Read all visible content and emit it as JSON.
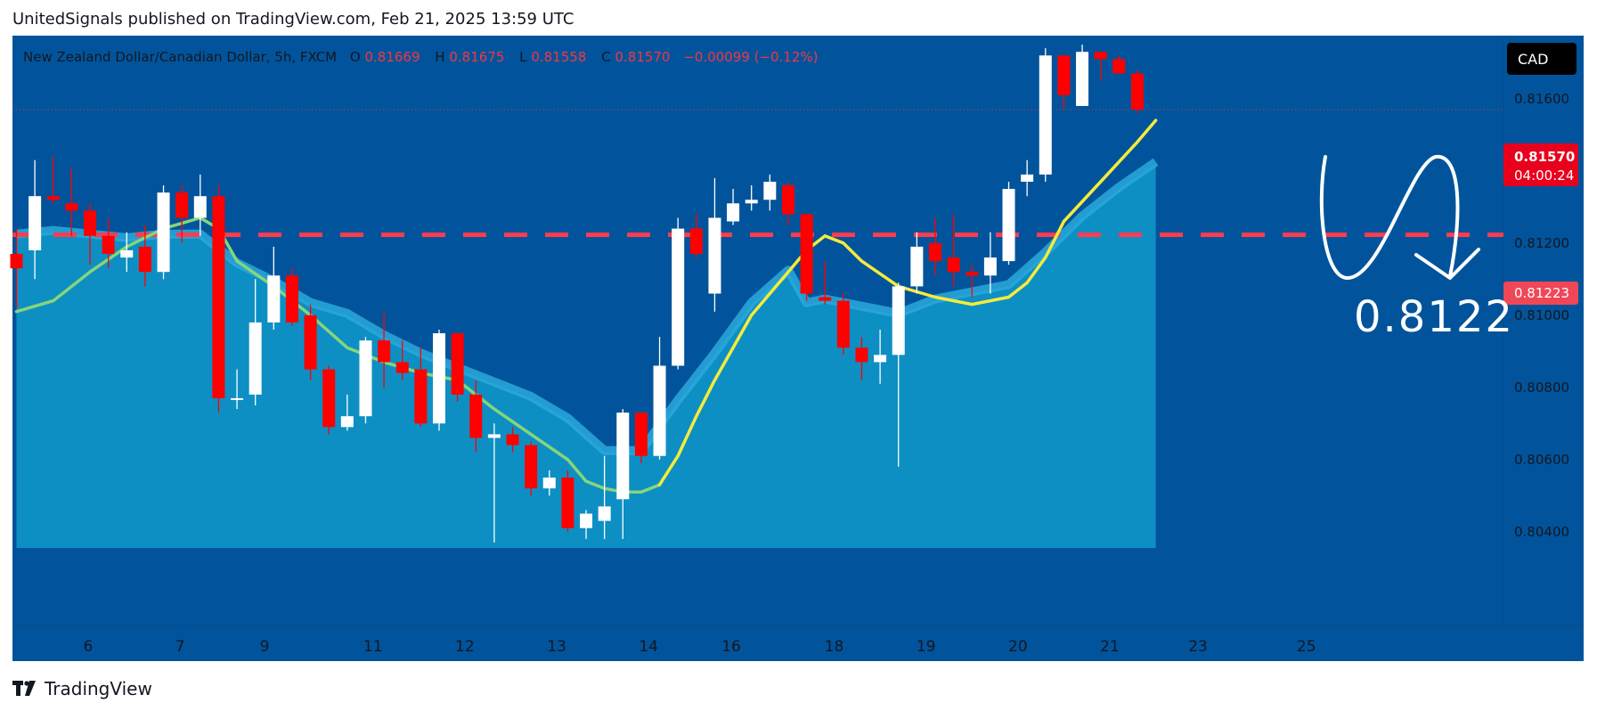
{
  "header": {
    "publisher": "UnitedSignals published on TradingView.com, Feb 21, 2025 13:59 UTC"
  },
  "footer": {
    "brand": "TradingView"
  },
  "colors": {
    "panel": "#01549b",
    "area_fill": "#0d8fc4",
    "area_band": "#2aa9dc",
    "yellow_ma": "#f5eb3b",
    "green_ma": "#86d57a",
    "bear": "#ff0000",
    "bull": "#ffffff",
    "level": "#ff3b4e",
    "legend_text": "#131722",
    "legend_value": "#f23645"
  },
  "legend": {
    "symbol": "New Zealand Dollar/Canadian Dollar, 5h, FXCM",
    "o_label": "O",
    "o_value": "0.81669",
    "h_label": "H",
    "h_value": "0.81675",
    "l_label": "L",
    "l_value": "0.81558",
    "c_label": "C",
    "c_value": "0.81570",
    "change": "−0.00099 (−0.12%)"
  },
  "currency": "CAD",
  "price_badge": {
    "price": "0.81570",
    "countdown": "04:00:24"
  },
  "level_badge": "0.81223",
  "annotation": "0.8122",
  "chart_data": {
    "type": "candlestick",
    "instrument": "NZDCAD",
    "timeframe": "5h",
    "ylim": [
      0.8035,
      0.8177
    ],
    "y_ticks": [
      "0.81600",
      "0.81400",
      "0.81200",
      "0.81000",
      "0.80800",
      "0.80600",
      "0.80400"
    ],
    "y_tick_values": [
      0.816,
      0.814,
      0.812,
      0.81,
      0.808,
      0.806,
      0.804
    ],
    "x_ticks": [
      {
        "label": "6",
        "index": 3.9
      },
      {
        "label": "7",
        "index": 8.9
      },
      {
        "label": "9",
        "index": 13.5
      },
      {
        "label": "11",
        "index": 19.4
      },
      {
        "label": "12",
        "index": 24.4
      },
      {
        "label": "13",
        "index": 29.4
      },
      {
        "label": "14",
        "index": 34.4
      },
      {
        "label": "16",
        "index": 38.9
      },
      {
        "label": "18",
        "index": 44.5
      },
      {
        "label": "19",
        "index": 49.5
      },
      {
        "label": "20",
        "index": 54.5
      },
      {
        "label": "21",
        "index": 59.5
      },
      {
        "label": "23",
        "index": 64.3
      },
      {
        "label": "25",
        "index": 70.2
      }
    ],
    "horizontal_level": 0.81223,
    "last_price": 0.8157,
    "candles": [
      [
        0.8117,
        0.8124,
        0.8102,
        0.8113
      ],
      [
        0.8118,
        0.8143,
        0.811,
        0.8133
      ],
      [
        0.8133,
        0.8144,
        0.8131,
        0.8132
      ],
      [
        0.8131,
        0.8141,
        0.8122,
        0.8129
      ],
      [
        0.8129,
        0.8131,
        0.8114,
        0.8122
      ],
      [
        0.8122,
        0.8127,
        0.8113,
        0.8117
      ],
      [
        0.8116,
        0.8123,
        0.8112,
        0.8118
      ],
      [
        0.8119,
        0.8125,
        0.8108,
        0.8112
      ],
      [
        0.8112,
        0.8136,
        0.811,
        0.8134
      ],
      [
        0.8134,
        0.8136,
        0.812,
        0.8127
      ],
      [
        0.8127,
        0.8139,
        0.8122,
        0.8133
      ],
      [
        0.8133,
        0.8136,
        0.8073,
        0.8077
      ],
      [
        0.8077,
        0.8085,
        0.8074,
        0.8077
      ],
      [
        0.8078,
        0.811,
        0.8075,
        0.8098
      ],
      [
        0.8098,
        0.8119,
        0.8096,
        0.8111
      ],
      [
        0.8111,
        0.8113,
        0.8097,
        0.8098
      ],
      [
        0.81,
        0.8103,
        0.8082,
        0.8085
      ],
      [
        0.8085,
        0.8086,
        0.8067,
        0.8069
      ],
      [
        0.8069,
        0.8078,
        0.8068,
        0.8072
      ],
      [
        0.8072,
        0.8094,
        0.807,
        0.8093
      ],
      [
        0.8093,
        0.8101,
        0.808,
        0.8087
      ],
      [
        0.8087,
        0.8093,
        0.8082,
        0.8084
      ],
      [
        0.8085,
        0.8091,
        0.8069,
        0.807
      ],
      [
        0.807,
        0.8096,
        0.8068,
        0.8095
      ],
      [
        0.8095,
        0.8095,
        0.8076,
        0.8078
      ],
      [
        0.8078,
        0.8082,
        0.8062,
        0.8066
      ],
      [
        0.8066,
        0.807,
        0.8037,
        0.8067
      ],
      [
        0.8067,
        0.8069,
        0.8062,
        0.8064
      ],
      [
        0.8064,
        0.8065,
        0.805,
        0.8052
      ],
      [
        0.8052,
        0.8057,
        0.805,
        0.8055
      ],
      [
        0.8055,
        0.8057,
        0.804,
        0.8041
      ],
      [
        0.8041,
        0.8046,
        0.8038,
        0.8045
      ],
      [
        0.8043,
        0.8061,
        0.8038,
        0.8047
      ],
      [
        0.8049,
        0.8074,
        0.8038,
        0.8073
      ],
      [
        0.8073,
        0.8073,
        0.8059,
        0.8061
      ],
      [
        0.8061,
        0.8094,
        0.806,
        0.8086
      ],
      [
        0.8086,
        0.8127,
        0.8085,
        0.8124
      ],
      [
        0.8124,
        0.8128,
        0.8116,
        0.8117
      ],
      [
        0.8106,
        0.8138,
        0.8101,
        0.8127
      ],
      [
        0.8126,
        0.8135,
        0.8125,
        0.8131
      ],
      [
        0.8131,
        0.8136,
        0.8129,
        0.8132
      ],
      [
        0.8132,
        0.8139,
        0.8129,
        0.8137
      ],
      [
        0.8136,
        0.8137,
        0.8125,
        0.8128
      ],
      [
        0.8128,
        0.8128,
        0.8104,
        0.8106
      ],
      [
        0.8105,
        0.8115,
        0.8103,
        0.8104
      ],
      [
        0.8104,
        0.8106,
        0.8089,
        0.8091
      ],
      [
        0.8091,
        0.8094,
        0.8082,
        0.8087
      ],
      [
        0.8087,
        0.8096,
        0.8081,
        0.8089
      ],
      [
        0.8089,
        0.8109,
        0.8058,
        0.8108
      ],
      [
        0.8108,
        0.8123,
        0.8106,
        0.8119
      ],
      [
        0.812,
        0.8127,
        0.8111,
        0.8115
      ],
      [
        0.8116,
        0.8128,
        0.8108,
        0.8112
      ],
      [
        0.8112,
        0.8114,
        0.8105,
        0.8111
      ],
      [
        0.8111,
        0.8123,
        0.8106,
        0.8116
      ],
      [
        0.8115,
        0.8137,
        0.8114,
        0.8135
      ],
      [
        0.8137,
        0.8143,
        0.8133,
        0.8139
      ],
      [
        0.8139,
        0.8174,
        0.8137,
        0.8172
      ],
      [
        0.8172,
        0.8172,
        0.8157,
        0.8161
      ],
      [
        0.8158,
        0.8175,
        0.8158,
        0.8173
      ],
      [
        0.8173,
        0.8173,
        0.8165,
        0.8171
      ],
      [
        0.8171,
        0.8172,
        0.8167,
        0.8167
      ],
      [
        0.8167,
        0.8168,
        0.8156,
        0.8157
      ]
    ],
    "ma_fast": [
      [
        0,
        0.8101
      ],
      [
        2,
        0.8104
      ],
      [
        4,
        0.8112
      ],
      [
        6,
        0.8119
      ],
      [
        8,
        0.8124
      ],
      [
        10,
        0.8127
      ],
      [
        11,
        0.8124
      ],
      [
        12,
        0.8115
      ],
      [
        14,
        0.8108
      ],
      [
        16,
        0.81
      ],
      [
        18,
        0.8091
      ],
      [
        20,
        0.8087
      ],
      [
        22,
        0.8084
      ],
      [
        24,
        0.8082
      ],
      [
        26,
        0.8074
      ],
      [
        28,
        0.8067
      ],
      [
        30,
        0.806
      ],
      [
        31,
        0.8054
      ],
      [
        32,
        0.8052
      ],
      [
        33,
        0.8051
      ],
      [
        34,
        0.8051
      ],
      [
        35,
        0.8053
      ],
      [
        36,
        0.8061
      ],
      [
        37,
        0.8072
      ],
      [
        38,
        0.8082
      ],
      [
        40,
        0.81
      ],
      [
        42,
        0.8112
      ],
      [
        43,
        0.8118
      ],
      [
        44,
        0.8122
      ],
      [
        45,
        0.812
      ],
      [
        46,
        0.8115
      ],
      [
        48,
        0.8108
      ],
      [
        50,
        0.8105
      ],
      [
        52,
        0.8103
      ],
      [
        54,
        0.8105
      ],
      [
        55,
        0.8109
      ],
      [
        56,
        0.8116
      ],
      [
        57,
        0.8126
      ],
      [
        59,
        0.8137
      ],
      [
        61,
        0.8148
      ],
      [
        62,
        0.8154
      ]
    ],
    "ma_slow": [
      [
        0,
        0.8122
      ],
      [
        2,
        0.8123
      ],
      [
        4,
        0.8122
      ],
      [
        6,
        0.8121
      ],
      [
        8,
        0.8122
      ],
      [
        10,
        0.8122
      ],
      [
        12,
        0.8114
      ],
      [
        14,
        0.8109
      ],
      [
        16,
        0.8103
      ],
      [
        18,
        0.81
      ],
      [
        20,
        0.8094
      ],
      [
        22,
        0.8089
      ],
      [
        24,
        0.8085
      ],
      [
        26,
        0.8081
      ],
      [
        28,
        0.8077
      ],
      [
        30,
        0.8071
      ],
      [
        32,
        0.8062
      ],
      [
        34,
        0.8062
      ],
      [
        36,
        0.8076
      ],
      [
        38,
        0.8089
      ],
      [
        40,
        0.8103
      ],
      [
        42,
        0.8112
      ],
      [
        43,
        0.8103
      ],
      [
        44,
        0.8104
      ],
      [
        46,
        0.8102
      ],
      [
        48,
        0.81
      ],
      [
        50,
        0.8104
      ],
      [
        52,
        0.8106
      ],
      [
        54,
        0.8108
      ],
      [
        56,
        0.8117
      ],
      [
        58,
        0.8127
      ],
      [
        60,
        0.8135
      ],
      [
        62,
        0.8142
      ]
    ]
  }
}
